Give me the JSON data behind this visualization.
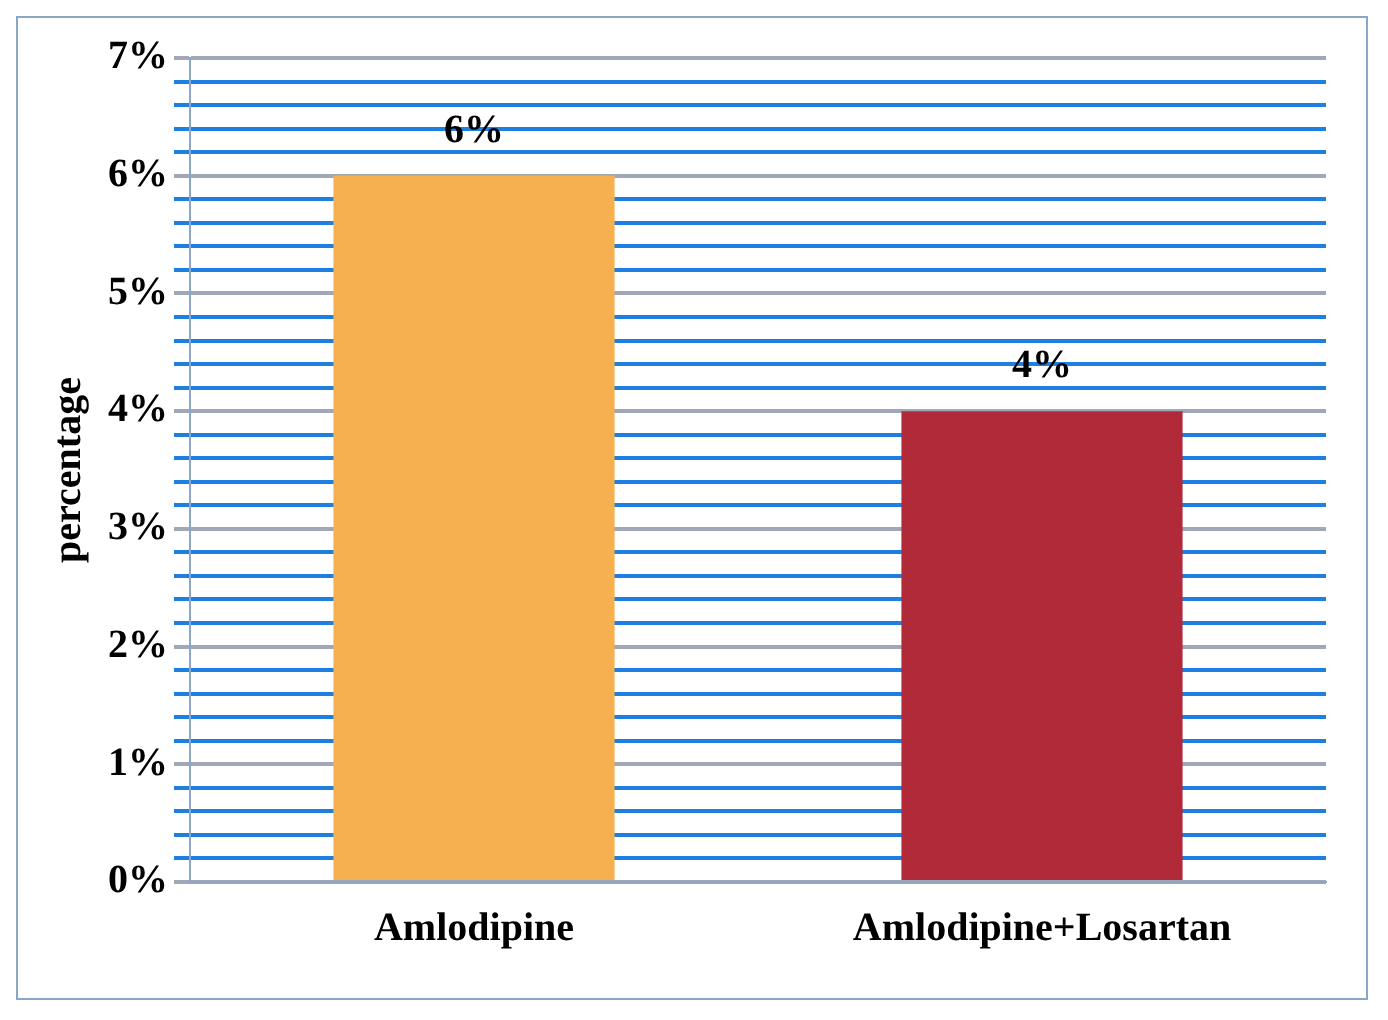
{
  "chart_data": {
    "type": "bar",
    "ylabel": "percentage",
    "categories": [
      "Amlodipine",
      "Amlodipine+Losartan"
    ],
    "values": [
      6,
      4
    ],
    "colors": [
      "#f7b04f",
      "#b02a3a"
    ],
    "value_labels": [
      "6%",
      "4%"
    ],
    "ylim": [
      0,
      7
    ],
    "yticks": [
      {
        "value": 0,
        "label": "0%"
      },
      {
        "value": 0.2,
        "label": null
      },
      {
        "value": 0.4,
        "label": null
      },
      {
        "value": 0.6,
        "label": null
      },
      {
        "value": 0.8,
        "label": null
      },
      {
        "value": 1,
        "label": "1%"
      },
      {
        "value": 1.2,
        "label": null
      },
      {
        "value": 1.4,
        "label": null
      },
      {
        "value": 1.6,
        "label": null
      },
      {
        "value": 1.8,
        "label": null
      },
      {
        "value": 2,
        "label": "2%"
      },
      {
        "value": 2.2,
        "label": null
      },
      {
        "value": 2.4,
        "label": null
      },
      {
        "value": 2.6,
        "label": null
      },
      {
        "value": 2.8,
        "label": null
      },
      {
        "value": 3,
        "label": "3%"
      },
      {
        "value": 3.2,
        "label": null
      },
      {
        "value": 3.4,
        "label": null
      },
      {
        "value": 3.6,
        "label": null
      },
      {
        "value": 3.8,
        "label": null
      },
      {
        "value": 4,
        "label": "4%"
      },
      {
        "value": 4.2,
        "label": null
      },
      {
        "value": 4.4,
        "label": null
      },
      {
        "value": 4.6,
        "label": null
      },
      {
        "value": 4.8,
        "label": null
      },
      {
        "value": 5,
        "label": "5%"
      },
      {
        "value": 5.2,
        "label": null
      },
      {
        "value": 5.4,
        "label": null
      },
      {
        "value": 5.6,
        "label": null
      },
      {
        "value": 5.8,
        "label": null
      },
      {
        "value": 6,
        "label": "6%"
      },
      {
        "value": 6.2,
        "label": null
      },
      {
        "value": 6.4,
        "label": null
      },
      {
        "value": 6.6,
        "label": null
      },
      {
        "value": 6.8,
        "label": null
      },
      {
        "value": 7,
        "label": "7%"
      }
    ],
    "grid": "y",
    "legend": false
  }
}
